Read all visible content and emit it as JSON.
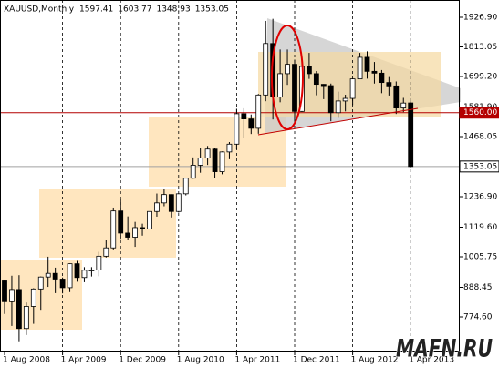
{
  "chart_data": {
    "type": "candlestick",
    "title": "XAUUSD,Monthly",
    "header_values": [
      1597.41,
      1603.77,
      1348.93,
      1353.05
    ],
    "categories": [
      "1 Aug 2008",
      null,
      null,
      null,
      null,
      null,
      null,
      null,
      "1 Apr 2009",
      null,
      null,
      null,
      null,
      null,
      null,
      null,
      "1 Dec 2009",
      null,
      null,
      null,
      null,
      null,
      null,
      null,
      "1 Aug 2010",
      null,
      null,
      null,
      null,
      null,
      null,
      null,
      "1 Apr 2011",
      null,
      null,
      null,
      null,
      null,
      null,
      null,
      "1 Dec 2011",
      null,
      null,
      null,
      null,
      null,
      null,
      null,
      "1 Aug 2012",
      null,
      null,
      null,
      null,
      null,
      null,
      null,
      "1 Apr 2013"
    ],
    "open": [
      913,
      833,
      880,
      730,
      815,
      882,
      928,
      942,
      920,
      887,
      979,
      926,
      954,
      955,
      1008,
      1040,
      1182,
      1097,
      1081,
      1118,
      1113,
      1180,
      1213,
      1245,
      1180,
      1248,
      1308,
      1358,
      1386,
      1420,
      1333,
      1409,
      1439,
      1556,
      1536,
      1500,
      1628,
      1826,
      1620,
      1710,
      1746,
      1565,
      1738,
      1710,
      1669,
      1664,
      1560,
      1605,
      1615,
      1690,
      1773,
      1719,
      1712,
      1676,
      1663,
      1578,
      1597.41
    ],
    "high": [
      918,
      933,
      935,
      830,
      885,
      930,
      1006,
      964,
      926,
      980,
      990,
      966,
      966,
      1025,
      1070,
      1195,
      1227,
      1161,
      1140,
      1133,
      1181,
      1249,
      1265,
      1246,
      1250,
      1310,
      1388,
      1424,
      1432,
      1424,
      1411,
      1447,
      1575,
      1577,
      1553,
      1632,
      1913,
      1921,
      1803,
      1803,
      1764,
      1764,
      1790,
      1720,
      1670,
      1672,
      1641,
      1629,
      1693,
      1790,
      1796,
      1755,
      1724,
      1697,
      1680,
      1617,
      1603.77
    ],
    "low": [
      786,
      740,
      681,
      705,
      748,
      802,
      890,
      866,
      865,
      870,
      910,
      908,
      930,
      931,
      1003,
      1034,
      1075,
      1071,
      1044,
      1087,
      1111,
      1160,
      1200,
      1157,
      1176,
      1242,
      1306,
      1329,
      1359,
      1309,
      1323,
      1381,
      1419,
      1462,
      1478,
      1479,
      1604,
      1534,
      1600,
      1667,
      1523,
      1563,
      1690,
      1627,
      1612,
      1527,
      1540,
      1565,
      1589,
      1689,
      1691,
      1672,
      1635,
      1626,
      1555,
      1562,
      1348.93
    ],
    "close": [
      833,
      880,
      730,
      815,
      882,
      928,
      942,
      920,
      887,
      979,
      926,
      954,
      955,
      1008,
      1040,
      1182,
      1097,
      1081,
      1118,
      1113,
      1180,
      1213,
      1245,
      1180,
      1248,
      1308,
      1358,
      1386,
      1420,
      1333,
      1409,
      1439,
      1556,
      1536,
      1500,
      1628,
      1826,
      1620,
      1710,
      1746,
      1565,
      1738,
      1710,
      1669,
      1664,
      1560,
      1605,
      1615,
      1690,
      1773,
      1719,
      1712,
      1676,
      1663,
      1578,
      1597,
      1353.05
    ],
    "up_color": "#ffffff",
    "down_color": "#000000",
    "line_color": "#000000",
    "ylim": [
      645,
      1993.4
    ],
    "yticks": [
      {
        "value": 1926.9,
        "label": "1926.90"
      },
      1813.05,
      {
        "value": 1699.2,
        "label": "1699.20"
      },
      {
        "value": 1581.9,
        "label": "1581.90"
      },
      1468.05,
      {
        "value": 1236.9,
        "label": "1236.90"
      },
      {
        "value": 1119.6,
        "label": "1119.60"
      },
      1005.75,
      888.45,
      {
        "value": 774.6,
        "label": "774.60"
      }
    ],
    "xgrid": true,
    "levels": [
      {
        "value": 1560,
        "label": "1560.00",
        "color": "#b40000"
      },
      {
        "value": 1353.05,
        "color": "#a0a0a0"
      }
    ],
    "watermark": "MAFN.RU"
  }
}
